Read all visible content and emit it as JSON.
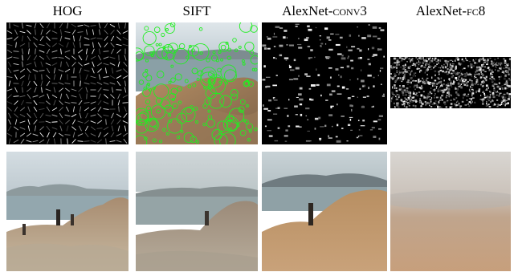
{
  "columns": [
    {
      "id": "hog",
      "title_main": "HOG",
      "title_sc": ""
    },
    {
      "id": "sift",
      "title_main": "SIFT",
      "title_sc": ""
    },
    {
      "id": "conv3",
      "title_main": "AlexNet-",
      "title_sc": "conv3"
    },
    {
      "id": "fc8",
      "title_main": "AlexNet-",
      "title_sc": "fc8"
    }
  ],
  "colors": {
    "sift_keypoint": "#22ee22",
    "feature_background": "#000000",
    "sea": "#8fa6ae",
    "sky": "#c9d6dc",
    "rock": "#b08a66"
  },
  "panel_content": {
    "row1": [
      "hog-feature-visualization",
      "sift-keypoints-over-photo",
      "conv3-activation-map",
      "fc8-activation-map"
    ],
    "row2": [
      "hog-inverted-photo",
      "sift-inverted-photo",
      "conv3-inverted-photo",
      "fc8-inverted-photo"
    ]
  }
}
